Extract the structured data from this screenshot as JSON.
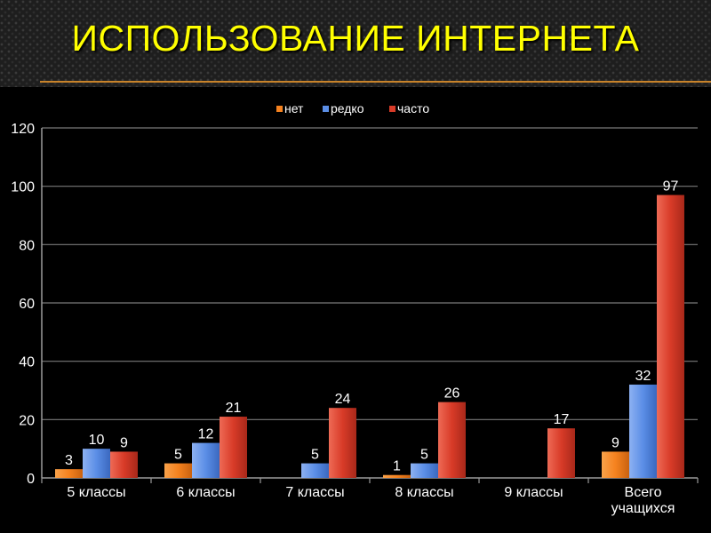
{
  "slide": {
    "title": "ИСПОЛЬЗОВАНИЕ ИНТЕРНЕТА"
  },
  "chart_data": {
    "type": "bar",
    "title": "",
    "xlabel": "",
    "ylabel": "",
    "categories": [
      "5 классы",
      "6 классы",
      "7 классы",
      "8 классы",
      "9 классы",
      "Всего учащихся"
    ],
    "series": [
      {
        "name": "нет",
        "color": "#f5821f",
        "values": [
          3,
          5,
          null,
          1,
          null,
          9
        ]
      },
      {
        "name": "редко",
        "color": "#5b8ee6",
        "values": [
          10,
          12,
          5,
          5,
          null,
          32
        ]
      },
      {
        "name": "часто",
        "color": "#d83b28",
        "values": [
          9,
          21,
          24,
          26,
          17,
          97
        ]
      }
    ],
    "ylim": [
      0,
      120
    ],
    "yticks": [
      0,
      20,
      40,
      60,
      80,
      100,
      120
    ],
    "grid": true,
    "legend_position": "top",
    "data_labels": true
  }
}
